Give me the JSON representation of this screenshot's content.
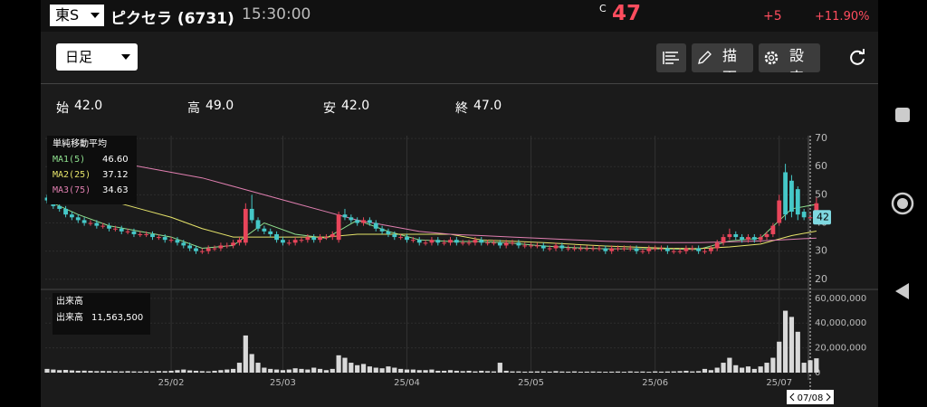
{
  "header": {
    "market": "東S",
    "name": "ピクセラ (6731)",
    "time": "15:30:00",
    "price_prefix": "C",
    "price": "47",
    "change": "+5",
    "change_pct": "+11.90%"
  },
  "toolbar": {
    "period": "日足",
    "draw": "描画",
    "settings": "設定"
  },
  "ohlc_row": [
    {
      "label": "始",
      "value": "42.0"
    },
    {
      "label": "高",
      "value": "49.0"
    },
    {
      "label": "安",
      "value": "42.0"
    },
    {
      "label": "終",
      "value": "47.0"
    }
  ],
  "chart_data": {
    "type": "candlestick",
    "categories": [
      null,
      null,
      null,
      null,
      null,
      null,
      null,
      null,
      null,
      null,
      null,
      null,
      null,
      null,
      null,
      null,
      null,
      null,
      null,
      null,
      "25/02",
      null,
      null,
      null,
      null,
      null,
      null,
      null,
      null,
      null,
      null,
      null,
      null,
      null,
      null,
      null,
      null,
      null,
      "25/03",
      null,
      null,
      null,
      null,
      null,
      null,
      null,
      null,
      null,
      null,
      null,
      null,
      null,
      null,
      null,
      null,
      null,
      null,
      null,
      "25/04",
      null,
      null,
      null,
      null,
      null,
      null,
      null,
      null,
      null,
      null,
      null,
      null,
      null,
      null,
      null,
      null,
      null,
      null,
      null,
      "25/05",
      null,
      null,
      null,
      null,
      null,
      null,
      null,
      null,
      null,
      null,
      null,
      null,
      null,
      null,
      null,
      null,
      null,
      null,
      null,
      "25/06",
      null,
      null,
      null,
      null,
      null,
      null,
      null,
      null,
      null,
      null,
      null,
      null,
      null,
      null,
      null,
      null,
      null,
      null,
      null,
      "25/07",
      null,
      null,
      null,
      null,
      null
    ],
    "ohlc": [
      [
        49,
        50,
        47,
        48
      ],
      [
        48,
        49,
        45,
        46
      ],
      [
        46,
        47,
        44,
        45
      ],
      [
        45,
        46,
        42,
        43
      ],
      [
        43,
        44,
        41,
        42
      ],
      [
        42,
        43,
        40,
        41
      ],
      [
        41,
        42,
        39,
        40
      ],
      [
        40,
        41,
        39,
        40
      ],
      [
        40,
        41,
        38,
        39
      ],
      [
        39,
        40,
        38,
        39
      ],
      [
        39,
        40,
        37,
        38
      ],
      [
        38,
        39,
        37,
        38
      ],
      [
        38,
        39,
        36,
        37
      ],
      [
        37,
        38,
        36,
        37
      ],
      [
        37,
        38,
        35,
        36
      ],
      [
        36,
        37,
        35,
        36
      ],
      [
        36,
        37,
        35,
        36
      ],
      [
        36,
        37,
        34,
        35
      ],
      [
        35,
        36,
        34,
        35
      ],
      [
        35,
        36,
        33,
        34
      ],
      [
        34,
        35,
        33,
        34
      ],
      [
        34,
        35,
        32,
        33
      ],
      [
        33,
        34,
        31,
        32
      ],
      [
        32,
        33,
        30,
        31
      ],
      [
        31,
        32,
        29,
        30
      ],
      [
        30,
        31,
        29,
        30
      ],
      [
        30,
        32,
        29,
        31
      ],
      [
        31,
        32,
        30,
        31
      ],
      [
        31,
        33,
        30,
        32
      ],
      [
        32,
        33,
        31,
        32
      ],
      [
        32,
        34,
        31,
        33
      ],
      [
        33,
        35,
        32,
        34
      ],
      [
        33,
        47,
        32,
        45
      ],
      [
        45,
        50,
        40,
        41
      ],
      [
        41,
        42,
        37,
        38
      ],
      [
        38,
        39,
        36,
        37
      ],
      [
        37,
        38,
        35,
        36
      ],
      [
        36,
        37,
        33,
        34
      ],
      [
        34,
        35,
        32,
        33
      ],
      [
        33,
        34,
        32,
        33
      ],
      [
        33,
        35,
        32,
        34
      ],
      [
        34,
        35,
        33,
        34
      ],
      [
        34,
        36,
        33,
        35
      ],
      [
        35,
        36,
        33,
        34
      ],
      [
        34,
        36,
        33,
        35
      ],
      [
        35,
        36,
        34,
        35
      ],
      [
        35,
        37,
        34,
        36
      ],
      [
        34,
        44,
        33,
        43
      ],
      [
        43,
        45,
        41,
        42
      ],
      [
        42,
        43,
        40,
        41
      ],
      [
        41,
        42,
        39,
        40
      ],
      [
        40,
        42,
        39,
        41
      ],
      [
        41,
        42,
        39,
        40
      ],
      [
        40,
        41,
        37,
        38
      ],
      [
        38,
        39,
        36,
        37
      ],
      [
        37,
        38,
        35,
        36
      ],
      [
        36,
        37,
        34,
        35
      ],
      [
        35,
        36,
        34,
        35
      ],
      [
        35,
        36,
        33,
        34
      ],
      [
        34,
        35,
        33,
        34
      ],
      [
        34,
        35,
        32,
        33
      ],
      [
        33,
        34,
        32,
        33
      ],
      [
        33,
        35,
        32,
        34
      ],
      [
        34,
        35,
        32,
        33
      ],
      [
        33,
        34,
        32,
        33
      ],
      [
        33,
        35,
        32,
        34
      ],
      [
        34,
        35,
        32,
        33
      ],
      [
        33,
        34,
        32,
        33
      ],
      [
        33,
        34,
        32,
        33
      ],
      [
        33,
        35,
        32,
        34
      ],
      [
        34,
        35,
        32,
        33
      ],
      [
        33,
        34,
        32,
        33
      ],
      [
        33,
        34,
        32,
        33
      ],
      [
        33,
        34,
        31,
        32
      ],
      [
        32,
        34,
        31,
        33
      ],
      [
        33,
        34,
        32,
        33
      ],
      [
        33,
        34,
        31,
        32
      ],
      [
        32,
        33,
        31,
        32
      ],
      [
        32,
        33,
        31,
        32
      ],
      [
        32,
        33,
        31,
        32
      ],
      [
        32,
        33,
        30,
        31
      ],
      [
        31,
        32,
        30,
        31
      ],
      [
        31,
        33,
        30,
        32
      ],
      [
        32,
        33,
        30,
        31
      ],
      [
        31,
        32,
        30,
        31
      ],
      [
        31,
        32,
        30,
        31
      ],
      [
        31,
        32,
        30,
        31
      ],
      [
        31,
        32,
        30,
        31
      ],
      [
        31,
        32,
        30,
        31
      ],
      [
        31,
        32,
        30,
        31
      ],
      [
        31,
        32,
        29,
        30
      ],
      [
        30,
        32,
        29,
        31
      ],
      [
        31,
        32,
        30,
        31
      ],
      [
        31,
        32,
        30,
        31
      ],
      [
        31,
        32,
        30,
        31
      ],
      [
        31,
        32,
        29,
        30
      ],
      [
        30,
        31,
        29,
        30
      ],
      [
        30,
        32,
        29,
        31
      ],
      [
        31,
        32,
        30,
        31
      ],
      [
        31,
        32,
        30,
        31
      ],
      [
        31,
        32,
        29,
        30
      ],
      [
        30,
        31,
        29,
        30
      ],
      [
        30,
        31,
        29,
        30
      ],
      [
        30,
        32,
        29,
        31
      ],
      [
        31,
        32,
        30,
        31
      ],
      [
        31,
        32,
        29,
        30
      ],
      [
        30,
        31,
        29,
        30
      ],
      [
        30,
        32,
        29,
        31
      ],
      [
        31,
        34,
        30,
        33
      ],
      [
        33,
        36,
        32,
        35
      ],
      [
        35,
        38,
        34,
        36
      ],
      [
        36,
        37,
        34,
        35
      ],
      [
        35,
        36,
        33,
        34
      ],
      [
        34,
        36,
        33,
        35
      ],
      [
        35,
        36,
        33,
        34
      ],
      [
        34,
        36,
        33,
        35
      ],
      [
        35,
        37,
        34,
        36
      ],
      [
        36,
        40,
        35,
        39
      ],
      [
        40,
        50,
        39,
        48
      ],
      [
        58,
        61,
        41,
        43
      ],
      [
        55,
        57,
        42,
        44
      ],
      [
        52,
        53,
        41,
        43
      ],
      [
        44,
        45,
        41,
        42
      ],
      [
        42,
        44,
        41,
        42
      ],
      [
        42,
        49,
        42,
        47
      ]
    ],
    "up_color": "#e8455a",
    "down_color": "#45c8c8",
    "ylim": [
      18,
      71
    ],
    "yticks": [
      20,
      30,
      40,
      50,
      60,
      70
    ],
    "ma_title": "単純移動平均",
    "ma": [
      {
        "name": "MA1(5)",
        "color": "#8fe08f",
        "legend_value": "46.60",
        "x": [
          0,
          5,
          10,
          15,
          20,
          25,
          30,
          35,
          40,
          45,
          50,
          55,
          60,
          65,
          70,
          75,
          80,
          85,
          90,
          95,
          100,
          105,
          110,
          115,
          120,
          124
        ],
        "values": [
          48,
          43,
          39,
          37,
          35,
          31,
          32,
          40,
          36,
          34.6,
          41,
          37,
          34,
          33.4,
          33.4,
          32.8,
          31.8,
          31.2,
          30.8,
          30.8,
          30.8,
          30.6,
          33.6,
          34.6,
          45,
          46.6
        ]
      },
      {
        "name": "MA2(25)",
        "color": "#e6e46a",
        "legend_value": "37.12",
        "x": [
          0,
          5,
          10,
          15,
          20,
          25,
          30,
          35,
          40,
          45,
          50,
          55,
          60,
          65,
          70,
          75,
          80,
          85,
          90,
          95,
          100,
          105,
          110,
          115,
          120,
          124
        ],
        "values": [
          55,
          52,
          48,
          45,
          42,
          38,
          35,
          35,
          35,
          35,
          36,
          36,
          36,
          36,
          34,
          33.5,
          33,
          32.4,
          31.8,
          31.4,
          31,
          30.9,
          31.5,
          32.5,
          35.5,
          37.12
        ]
      },
      {
        "name": "MA3(75)",
        "color": "#e07fb0",
        "legend_value": "34.63",
        "x": [
          0,
          5,
          10,
          15,
          20,
          25,
          30,
          35,
          40,
          45,
          50,
          55,
          60,
          65,
          70,
          75,
          80,
          85,
          90,
          95,
          100,
          105,
          110,
          115,
          120,
          124
        ],
        "values": [
          66,
          64,
          62,
          60,
          58,
          56,
          53,
          50,
          47,
          44,
          41,
          39,
          37,
          36,
          35.5,
          35,
          34.5,
          34,
          33.5,
          33.2,
          33,
          33,
          33.3,
          33.6,
          34.2,
          34.63
        ]
      }
    ],
    "volume": {
      "title": "出来高",
      "label": "出来高",
      "last_label": "11,563,500",
      "color": "#d9d9d9",
      "values": [
        3000000,
        2500000,
        2000000,
        2200000,
        1800000,
        1500000,
        1600000,
        1400000,
        1200000,
        1300000,
        1200000,
        1100000,
        1000000,
        1200000,
        1000000,
        900000,
        1100000,
        1000000,
        1300000,
        1200000,
        1500000,
        2000000,
        2500000,
        1800000,
        1500000,
        1200000,
        1000000,
        1500000,
        2000000,
        2500000,
        3000000,
        8000000,
        30000000,
        15000000,
        8000000,
        4000000,
        3000000,
        2500000,
        2000000,
        2500000,
        3500000,
        3000000,
        2500000,
        4000000,
        3000000,
        2000000,
        3000000,
        14000000,
        12000000,
        8000000,
        6000000,
        7000000,
        5000000,
        4000000,
        3500000,
        5000000,
        4000000,
        3000000,
        2500000,
        2500000,
        2000000,
        2000000,
        2500000,
        1500000,
        1500000,
        2000000,
        1500000,
        1200000,
        1500000,
        1000000,
        1500000,
        1200000,
        1000000,
        8000000,
        1500000,
        1000000,
        1000000,
        800000,
        900000,
        1000000,
        1000000,
        800000,
        1200000,
        900000,
        800000,
        1000000,
        700000,
        800000,
        900000,
        800000,
        700000,
        800000,
        900000,
        700000,
        1000000,
        800000,
        900000,
        700000,
        1000000,
        800000,
        900000,
        1000000,
        1200000,
        1500000,
        1000000,
        1200000,
        3000000,
        2000000,
        4000000,
        8000000,
        12000000,
        6000000,
        4000000,
        5000000,
        3000000,
        5000000,
        8000000,
        12000000,
        25000000,
        50000000,
        45000000,
        33000000,
        8000000,
        10000000,
        11563500
      ],
      "ylim": [
        0,
        65000000
      ],
      "yticks": [
        0,
        {
          "value": 20000000,
          "label": "20,000,000"
        },
        {
          "value": 40000000,
          "label": "40,000,000"
        },
        {
          "value": 60000000,
          "label": "60,000,000"
        }
      ]
    },
    "cursor_label": "07/08"
  }
}
